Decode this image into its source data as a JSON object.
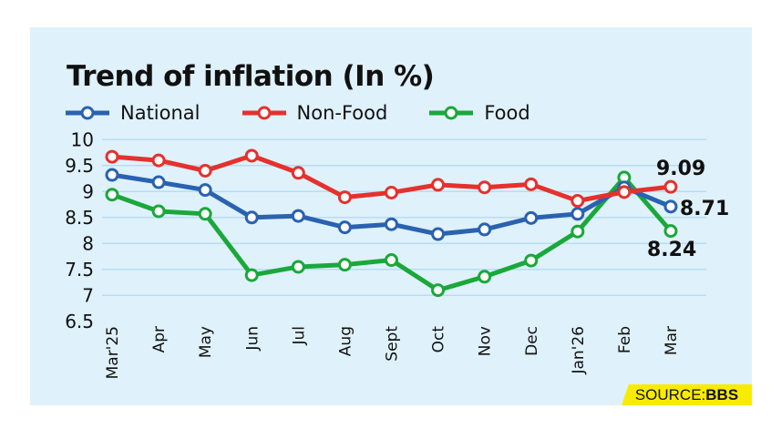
{
  "chart_data": {
    "type": "line",
    "title": "Trend of inflation (In %)",
    "categories": [
      "Mar'25",
      "Apr",
      "May",
      "Jun",
      "Jul",
      "Aug",
      "Sept",
      "Oct",
      "Nov",
      "Dec",
      "Jan'26",
      "Feb",
      "Mar"
    ],
    "ylim": [
      6.5,
      10
    ],
    "yticks": [
      "6.5",
      "7",
      "7.5",
      "8",
      "8.5",
      "9",
      "9.5",
      "10"
    ],
    "grid": true,
    "legend": "top-left",
    "series": [
      {
        "name": "National",
        "color": "#2a62b0",
        "values": [
          9.32,
          9.18,
          9.03,
          8.5,
          8.53,
          8.31,
          8.37,
          8.18,
          8.27,
          8.49,
          8.57,
          9.08,
          8.71
        ]
      },
      {
        "name": "Non-Food",
        "color": "#e5312d",
        "values": [
          9.67,
          9.6,
          9.4,
          9.69,
          9.36,
          8.89,
          8.98,
          9.13,
          9.08,
          9.14,
          8.82,
          8.99,
          9.09
        ]
      },
      {
        "name": "Food",
        "color": "#1aa83a",
        "values": [
          8.94,
          8.62,
          8.57,
          7.39,
          7.55,
          7.59,
          7.68,
          7.1,
          7.36,
          7.67,
          8.23,
          9.27,
          8.24
        ]
      }
    ],
    "data_labels": {
      "national": "8.71",
      "non_food": "9.09",
      "food": "8.24"
    }
  },
  "source": {
    "label": "SOURCE:",
    "value": "BBS"
  },
  "colors": {
    "background": "#dff1fb",
    "grid": "#b5def3",
    "source_bg": "#f7ec00"
  }
}
